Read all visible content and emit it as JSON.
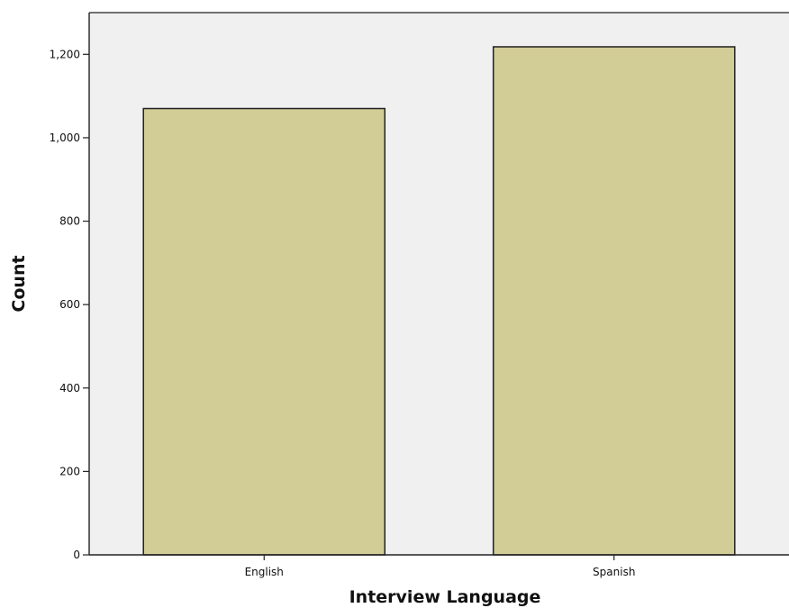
{
  "chart_data": {
    "type": "bar",
    "title": "",
    "xlabel": "Interview Language",
    "ylabel": "Count",
    "categories": [
      "English",
      "Spanish"
    ],
    "values": [
      1070,
      1218
    ],
    "ylim": [
      0,
      1300
    ],
    "yticks": [
      0,
      200,
      400,
      600,
      800,
      1000,
      1200
    ],
    "ytick_labels": [
      "0",
      "200",
      "400",
      "600",
      "800",
      "1,000",
      "1,200"
    ],
    "grid": false,
    "legend": "none",
    "colors": {
      "bar_fill": "#d2cc96",
      "bar_stroke": "#222222",
      "plot_background": "#f0f0f0"
    }
  }
}
